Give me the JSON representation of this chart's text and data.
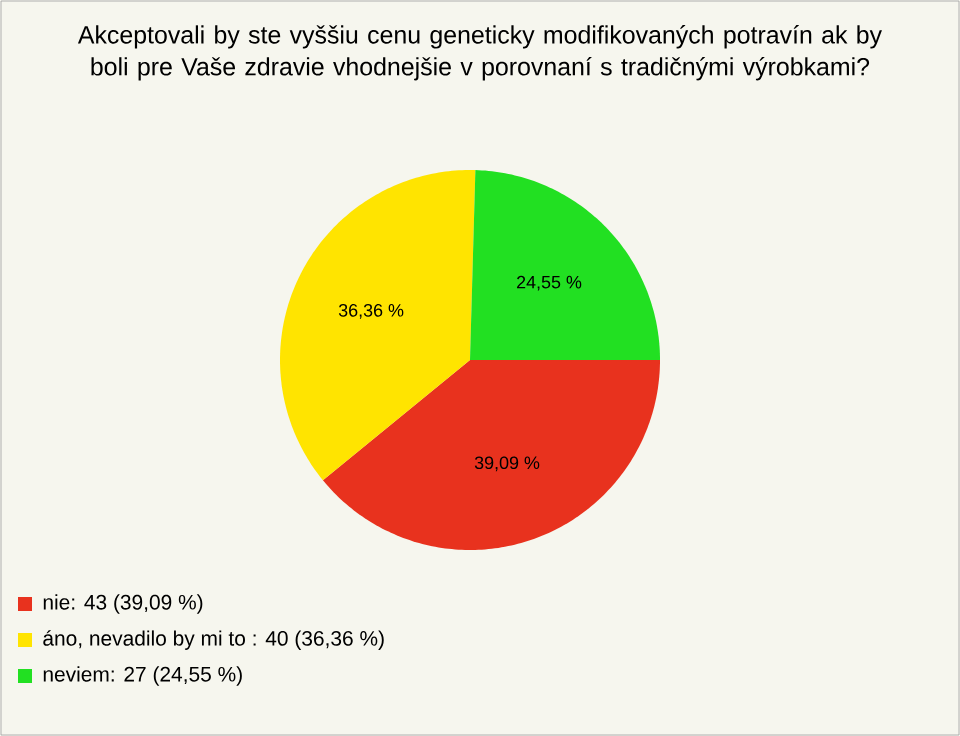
{
  "chart_data": {
    "type": "pie",
    "title": "Akceptovali by ste vyššiu cenu geneticky modifikovaných potravín ak by boli pre Vaše zdravie vhodnejšie v porovnaní s tradičnými výrobkami?",
    "categories": [
      "nie: 43 (39,09 %)",
      "áno, nevadilo by mi to : 40 (36,36 %)",
      "neviem: 27 (24,55 %)"
    ],
    "values": [
      39.09,
      36.36,
      24.55
    ],
    "colors": [
      "#e8321e",
      "#ffe400",
      "#22e022"
    ],
    "value_labels": [
      "39,09 %",
      "36,36 %",
      "24,55 %"
    ],
    "legend": "bottom left"
  }
}
